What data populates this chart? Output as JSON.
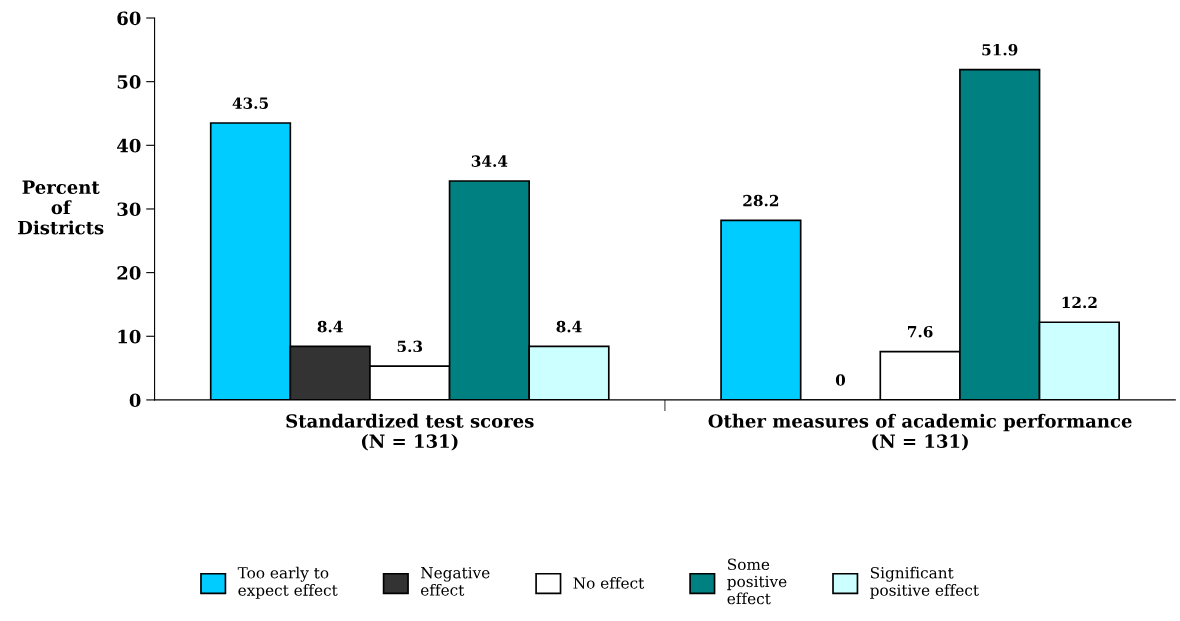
{
  "chart_data": {
    "type": "bar",
    "ylabel": "Percent\nof\nDistricts",
    "categories": [
      "Standardized test scores\n(N = 131)",
      "Other measures of academic performance\n(N = 131)"
    ],
    "series": [
      {
        "name": "Too early to\nexpect effect",
        "color": "#00ccff",
        "values": [
          43.5,
          28.2
        ]
      },
      {
        "name": "Negative\neffect",
        "color": "#333333",
        "values": [
          8.4,
          0
        ]
      },
      {
        "name": "No effect",
        "color": "#ffffff",
        "values": [
          5.3,
          7.6
        ]
      },
      {
        "name": "Some\npositive\neffect",
        "color": "#008080",
        "values": [
          34.4,
          51.9
        ]
      },
      {
        "name": "Significant\npositive effect",
        "color": "#ccffff",
        "values": [
          8.4,
          12.2
        ]
      }
    ],
    "ylim": [
      0,
      60
    ],
    "yticks": [
      0,
      10,
      20,
      30,
      40,
      50,
      60
    ],
    "grid": false,
    "legend": "bottom",
    "data_labels": true
  }
}
